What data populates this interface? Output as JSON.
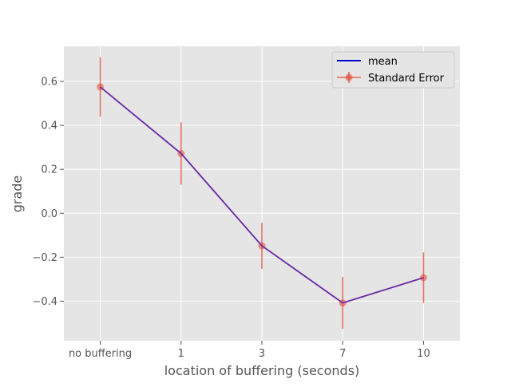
{
  "chart_data": {
    "type": "line",
    "title": "",
    "xlabel": "location of buffering (seconds)",
    "ylabel": "grade",
    "categories": [
      "no buffering",
      "1",
      "3",
      "7",
      "10"
    ],
    "ylim": [
      -0.58,
      0.76
    ],
    "yticks": [
      0.6,
      0.4,
      0.2,
      0.0,
      -0.2,
      -0.4
    ],
    "ytick_labels": [
      "0.6",
      "0.4",
      "0.2",
      "0.0",
      "−0.2",
      "−0.4"
    ],
    "grid": true,
    "legend_position": "top-right",
    "series": [
      {
        "name": "mean",
        "kind": "line",
        "color": "#0000cc",
        "values": [
          0.575,
          0.272,
          -0.148,
          -0.408,
          -0.293
        ]
      },
      {
        "name": "Standard Error",
        "kind": "errorbar",
        "color": "#e24a33",
        "values": [
          0.575,
          0.272,
          -0.148,
          -0.408,
          -0.293
        ],
        "errors": [
          0.135,
          0.142,
          0.105,
          0.118,
          0.115
        ]
      }
    ],
    "overlay_line_color": "#6b2aa8"
  }
}
